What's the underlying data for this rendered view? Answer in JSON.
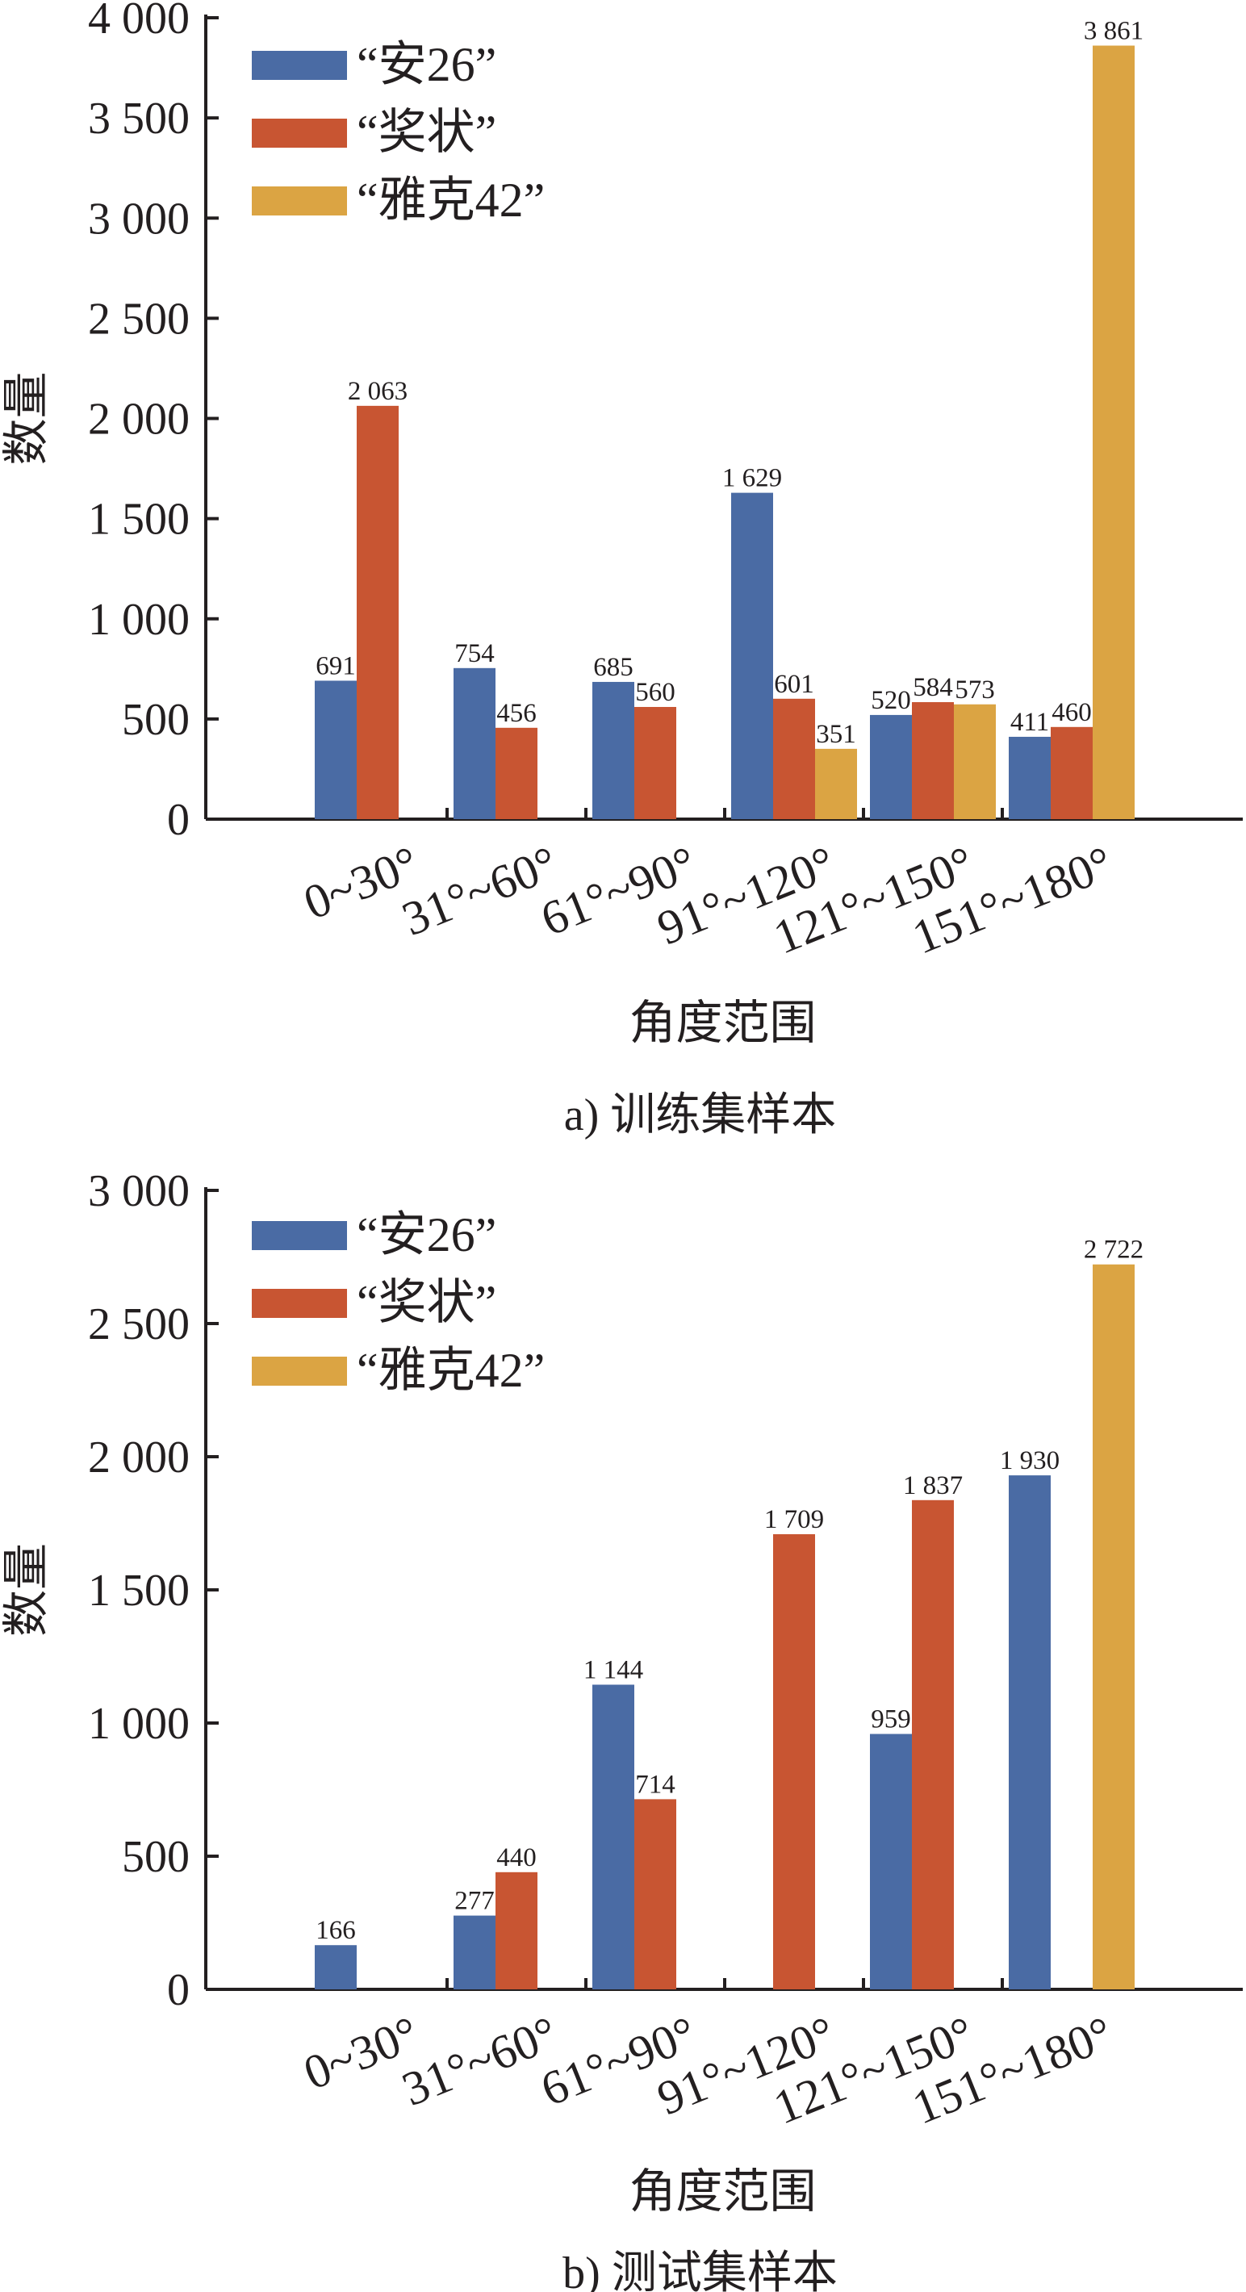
{
  "chart_data": [
    {
      "type": "bar",
      "panel": "a",
      "caption": "a) 训练集样本",
      "xlabel": "角度范围",
      "ylabel": "数量",
      "ylim": [
        0,
        4000
      ],
      "yticks": [
        0,
        500,
        1000,
        1500,
        2000,
        2500,
        3000,
        3500,
        4000
      ],
      "ytick_labels": [
        "0",
        "500",
        "1 000",
        "1 500",
        "2 000",
        "2 500",
        "3 000",
        "3 500",
        "4 000"
      ],
      "categories": [
        "0~30°",
        "31°~60°",
        "61°~90°",
        "91°~120°",
        "121°~150°",
        "151°~180°"
      ],
      "legend_position": "top-left",
      "grid": false,
      "series": [
        {
          "name": "“安26”",
          "color": "#4a6ba4",
          "values": [
            691,
            754,
            685,
            1629,
            520,
            411
          ],
          "labels": [
            "691",
            "754",
            "685",
            "1 629",
            "520",
            "411"
          ]
        },
        {
          "name": "“奖状”",
          "color": "#c85532",
          "values": [
            2063,
            456,
            560,
            601,
            584,
            460
          ],
          "labels": [
            "2 063",
            "456",
            "560",
            "601",
            "584",
            "460"
          ]
        },
        {
          "name": "“雅克42”",
          "color": "#dba443",
          "values": [
            null,
            null,
            null,
            351,
            573,
            3861
          ],
          "labels": [
            null,
            null,
            null,
            "351",
            "573",
            "3 861"
          ]
        }
      ]
    },
    {
      "type": "bar",
      "panel": "b",
      "caption": "b) 测试集样本",
      "xlabel": "角度范围",
      "ylabel": "数量",
      "ylim": [
        0,
        3000
      ],
      "yticks": [
        0,
        500,
        1000,
        1500,
        2000,
        2500,
        3000
      ],
      "ytick_labels": [
        "0",
        "500",
        "1 000",
        "1 500",
        "2 000",
        "2 500",
        "3 000"
      ],
      "categories": [
        "0~30°",
        "31°~60°",
        "61°~90°",
        "91°~120°",
        "121°~150°",
        "151°~180°"
      ],
      "legend_position": "top-left",
      "grid": false,
      "series": [
        {
          "name": "“安26”",
          "color": "#4a6ba4",
          "values": [
            166,
            277,
            1144,
            null,
            959,
            1930
          ],
          "labels": [
            "166",
            "277",
            "1 144",
            null,
            "959",
            "1 930"
          ]
        },
        {
          "name": "“奖状”",
          "color": "#c85532",
          "values": [
            null,
            440,
            714,
            1709,
            1837,
            null
          ],
          "labels": [
            null,
            "440",
            "714",
            "1 709",
            "1 837",
            null
          ]
        },
        {
          "name": "“雅克42”",
          "color": "#dba443",
          "values": [
            null,
            null,
            null,
            null,
            null,
            2722
          ],
          "labels": [
            null,
            null,
            null,
            null,
            null,
            "2 722"
          ]
        }
      ]
    }
  ]
}
